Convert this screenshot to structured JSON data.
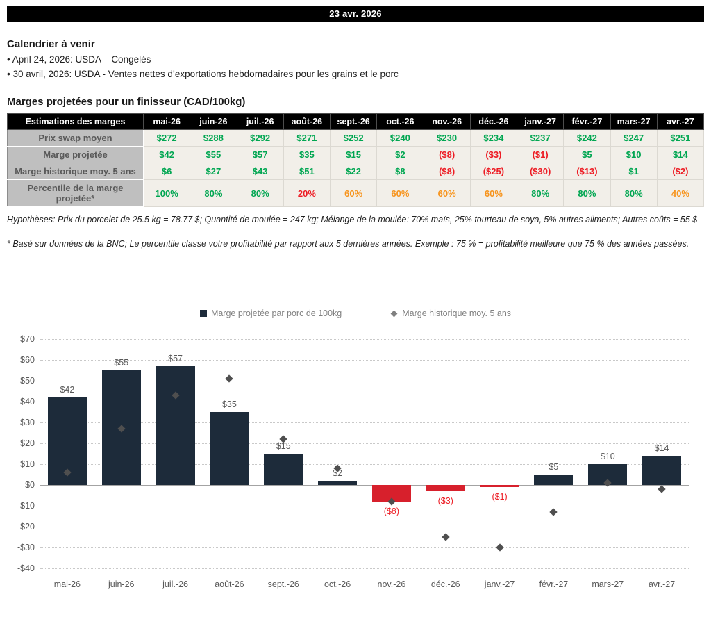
{
  "banner": {
    "date": "23 avr. 2026"
  },
  "calendar": {
    "title": "Calendrier à venir",
    "items": [
      "• April 24, 2026: USDA – Congelés",
      "• 30 avril, 2026: USDA - Ventes nettes d’exportations hebdomadaires pour les grains et le porc"
    ]
  },
  "margins": {
    "title": "Marges projetées pour un finisseur (CAD/100kg)",
    "table": {
      "header": [
        "Estimations des marges",
        "mai-26",
        "juin-26",
        "juil.-26",
        "août-26",
        "sept.-26",
        "oct.-26",
        "nov.-26",
        "déc.-26",
        "janv.-27",
        "févr.-27",
        "mars-27",
        "avr.-27"
      ],
      "rows": [
        {
          "label": "Prix swap moyen",
          "values": [
            "$272",
            "$288",
            "$292",
            "$271",
            "$252",
            "$240",
            "$230",
            "$234",
            "$237",
            "$242",
            "$247",
            "$251"
          ],
          "colors": [
            "green",
            "green",
            "green",
            "green",
            "green",
            "green",
            "green",
            "green",
            "green",
            "green",
            "green",
            "green"
          ]
        },
        {
          "label": "Marge projetée",
          "values": [
            "$42",
            "$55",
            "$57",
            "$35",
            "$15",
            "$2",
            "($8)",
            "($3)",
            "($1)",
            "$5",
            "$10",
            "$14"
          ],
          "colors": [
            "green",
            "green",
            "green",
            "green",
            "green",
            "green",
            "red",
            "red",
            "red",
            "green",
            "green",
            "green"
          ]
        },
        {
          "label": "Marge historique moy. 5 ans",
          "values": [
            "$6",
            "$27",
            "$43",
            "$51",
            "$22",
            "$8",
            "($8)",
            "($25)",
            "($30)",
            "($13)",
            "$1",
            "($2)"
          ],
          "colors": [
            "green",
            "green",
            "green",
            "green",
            "green",
            "green",
            "red",
            "red",
            "red",
            "red",
            "green",
            "red"
          ]
        },
        {
          "label": "Percentile de la marge projetée*",
          "values": [
            "100%",
            "80%",
            "80%",
            "20%",
            "60%",
            "60%",
            "60%",
            "60%",
            "80%",
            "80%",
            "80%",
            "40%"
          ],
          "colors": [
            "green",
            "green",
            "green",
            "red",
            "orange",
            "orange",
            "orange",
            "orange",
            "green",
            "green",
            "green",
            "orange"
          ]
        }
      ]
    },
    "notes": [
      "Hypothèses: Prix du porcelet de 25.5 kg = 78.77 $; Quantité de moulée = 247 kg; Mélange de la moulée: 70% maïs, 25% tourteau de soya, 5% autres aliments; Autres coûts = 55 $",
      "* Basé sur données de la BNC; Le percentile classe votre profitabilité par rapport aux 5 dernières années. Exemple : 75 % = profitabilité meilleure que 75 % des années passées."
    ]
  },
  "colors": {
    "green": "#00a651",
    "red": "#ed1c24",
    "orange": "#f7941d"
  },
  "chart_data": {
    "type": "bar",
    "categories": [
      "mai-26",
      "juin-26",
      "juil.-26",
      "août-26",
      "sept.-26",
      "oct.-26",
      "nov.-26",
      "déc.-26",
      "janv.-27",
      "févr.-27",
      "mars-27",
      "avr.-27"
    ],
    "series": [
      {
        "name": "Marge projetée par porc de 100kg",
        "type": "bar",
        "values": [
          42,
          55,
          57,
          35,
          15,
          2,
          -8,
          -3,
          -1,
          5,
          10,
          14
        ]
      },
      {
        "name": "Marge historique moy. 5 ans",
        "type": "scatter",
        "values": [
          6,
          27,
          43,
          51,
          22,
          8,
          -8,
          -25,
          -30,
          -13,
          1,
          -2
        ]
      }
    ],
    "bar_labels": [
      "$42",
      "$55",
      "$57",
      "$35",
      "$15",
      "$2",
      "($8)",
      "($3)",
      "($1)",
      "$5",
      "$10",
      "$14"
    ],
    "title": "",
    "xlabel": "",
    "ylabel": "",
    "ylim": [
      -40,
      70
    ],
    "ytick_step": 10,
    "grid": "horizontal-dotted",
    "legend_position": "top-center",
    "bar_positive_color": "#1d2b3a",
    "bar_negative_color": "#d7202c",
    "marker_color": "#4f4f4f"
  }
}
